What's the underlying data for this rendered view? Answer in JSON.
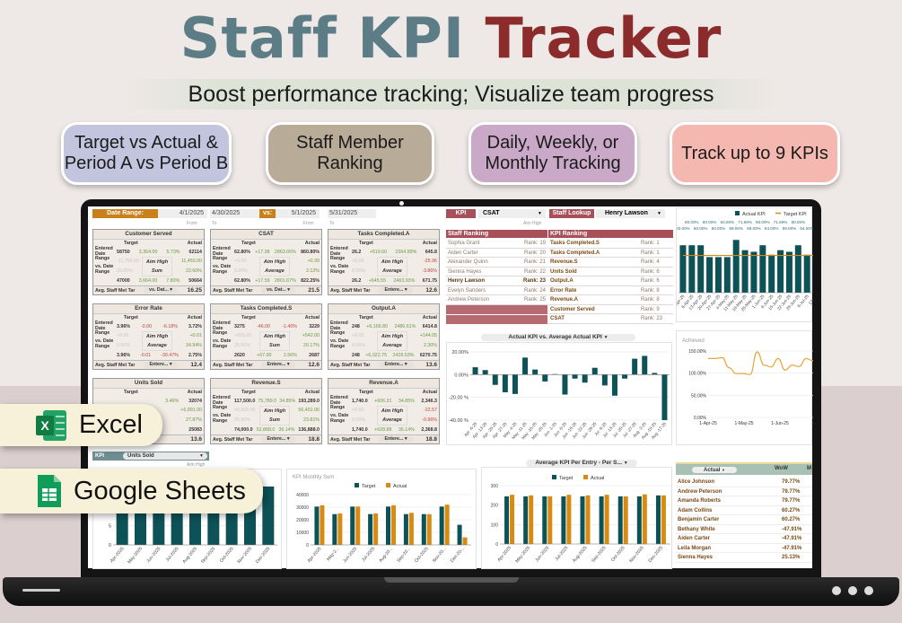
{
  "header": {
    "title_a": "Staff KPI",
    "title_b": "Tracker",
    "subtitle": "Boost performance tracking; Visualize team progress"
  },
  "badges": [
    {
      "l1": "Target vs Actual &",
      "l2": "Period A vs Period B",
      "color": "#c3c5df"
    },
    {
      "l1": "Staff Member",
      "l2": "Ranking",
      "color": "#b8ab98"
    },
    {
      "l1": "Daily, Weekly, or",
      "l2": "Monthly Tracking",
      "color": "#caa9c8"
    },
    {
      "l1": "Track up to 9 KPIs",
      "l2": "",
      "color": "#f5b8b1"
    }
  ],
  "platforms": {
    "excel": "Excel",
    "sheets": "Google Sheets"
  },
  "date_bar": {
    "label": "Date Range:",
    "from_a": "4/1/2025",
    "to_a": "4/30/2025",
    "vs": "vs:",
    "from_b": "5/1/2025",
    "to_b": "5/31/2025",
    "from_cap": "From",
    "to_cap": "To"
  },
  "kpi_cards": [
    {
      "title": "Customer Served",
      "target_h": "Target",
      "actual_h": "Actual",
      "row_a": [
        "58750",
        "3,364.00",
        "5.73%",
        "62114"
      ],
      "row_b": [
        "-11,750.00",
        "Aim High",
        "11,450.00"
      ],
      "row_c": [
        "25.00%",
        "Sum",
        "22.60%"
      ],
      "row_d": [
        "47000",
        "3,664.00",
        "7.80%",
        "50664"
      ],
      "footer": "Avg. Staff Met Tar",
      "dropdown": "vs. Dat...",
      "value": "16.25"
    },
    {
      "title": "CSAT",
      "target_h": "Target",
      "actual_h": "Actual",
      "row_a": [
        "62.80%",
        "+17.98",
        "2863.06%",
        "860.80%"
      ],
      "row_b": [
        "+0.00",
        "Aim High",
        "+0.39"
      ],
      "row_c": [
        "0.00%",
        "Average",
        "2.12%"
      ],
      "row_d": [
        "62.80%",
        "+17.59",
        "2801.67%",
        "822.25%"
      ],
      "footer": "Avg. Staff Met Tar",
      "dropdown": "vs. Dat...",
      "value": "21.5"
    },
    {
      "title": "Tasks Completed.A",
      "target_h": "Target",
      "actual_h": "Actual",
      "row_a": [
        "26.2",
        "+619.60",
        "2364.89%",
        "645.8"
      ],
      "row_b": [
        "+0.00",
        "Aim High",
        "-25.96"
      ],
      "row_c": [
        "0.00%",
        "Average",
        "-3.86%"
      ],
      "row_d": [
        "26.2",
        "+645.55",
        "2463.93%",
        "671.75"
      ],
      "footer": "Avg. Staff Met Tar",
      "dropdown": "Entere...",
      "value": "12.6"
    },
    {
      "title": "Error Rate",
      "target_h": "Target",
      "actual_h": "Actual",
      "row_a": [
        "3.96%",
        "-0.00",
        "-6.18%",
        "3.72%"
      ],
      "row_b": [
        "+0.00",
        "Aim High",
        "+0.01"
      ],
      "row_c": [
        "0.00%",
        "Average",
        "34.94%"
      ],
      "row_d": [
        "3.96%",
        "-0.01",
        "-30.47%",
        "2.75%"
      ],
      "footer": "Avg. Staff Met Tar",
      "dropdown": "Entere...",
      "value": "12.4"
    },
    {
      "title": "Tasks Completed.S",
      "target_h": "Target",
      "actual_h": "Actual",
      "row_a": [
        "3275",
        "-46.00",
        "-1.40%",
        "3229"
      ],
      "row_b": [
        "+655.00",
        "Aim High",
        "+542.00"
      ],
      "row_c": [
        "25.00%",
        "Sum",
        "20.17%"
      ],
      "row_d": [
        "2620",
        "+67.00",
        "2.56%",
        "2687"
      ],
      "footer": "Avg. Staff Met Tar",
      "dropdown": "Entere...",
      "value": "12.6"
    },
    {
      "title": "Output.A",
      "target_h": "Target",
      "actual_h": "Actual",
      "row_a": [
        "248",
        "+6,166.80",
        "2486.61%",
        "6414.8"
      ],
      "row_b": [
        "+0.00",
        "Aim High",
        "+144.05"
      ],
      "row_c": [
        "0.00%",
        "Average",
        "2.30%"
      ],
      "row_d": [
        "248",
        "+6,022.75",
        "2428.53%",
        "6270.75"
      ],
      "footer": "Avg. Staff Met Tar",
      "dropdown": "Entere...",
      "value": "13.6"
    },
    {
      "title": "Units Sold",
      "target_h": "Target",
      "actual_h": "Actual",
      "row_a": [
        "",
        "",
        "3.46%",
        "32074"
      ],
      "row_b": [
        "",
        "",
        "+6,991.00"
      ],
      "row_c": [
        "",
        "",
        "27.87%"
      ],
      "row_d": [
        "",
        "",
        "",
        "25083"
      ],
      "footer": "",
      "dropdown": "",
      "value": "13.6"
    },
    {
      "title": "Revenue.S",
      "target_h": "Target",
      "actual_h": "Actual",
      "row_a": [
        "117,500.0",
        "75,789.0",
        "34.85%",
        "193,289.0"
      ],
      "row_b": [
        "43,500.00",
        "Aim High",
        "56,401.00"
      ],
      "row_c": [
        "25.00%",
        "Sum",
        "23.81%"
      ],
      "row_d": [
        "74,000.0",
        "52,888.0",
        "36.14%",
        "136,888.0"
      ],
      "footer": "Avg. Staff Met Tar",
      "dropdown": "Entere...",
      "value": "18.8"
    },
    {
      "title": "Revenue.A",
      "target_h": "Target",
      "actual_h": "Actual",
      "row_a": [
        "1,740.0",
        "+606.31",
        "34.85%",
        "2,346.3"
      ],
      "row_b": [
        "+0.00",
        "Aim High",
        "-22.57"
      ],
      "row_c": [
        "0.00%",
        "Average",
        "-0.96%"
      ],
      "row_d": [
        "1,740.0",
        "+628.88",
        "36.14%",
        "2,368.8"
      ],
      "footer": "Avg. Staff Met Tar",
      "dropdown": "Entere...",
      "value": "18.8"
    }
  ],
  "lookup": {
    "kpi_label": "KPI",
    "kpi_value": "CSAT",
    "staff_label": "Staff Lookup",
    "staff_value": "Henry Lawson",
    "aim": "Aim High"
  },
  "staff_ranking": {
    "title": "Staff Ranking",
    "rows": [
      {
        "name": "Sophia Grant",
        "rank": "Rank: 19"
      },
      {
        "name": "Aiden Carter",
        "rank": "Rank: 20"
      },
      {
        "name": "Alexander Quinn",
        "rank": "Rank: 21"
      },
      {
        "name": "Sienna Hayes",
        "rank": "Rank: 22"
      },
      {
        "name": "Henry Lawson",
        "rank": "Rank: 23",
        "highlight": true
      },
      {
        "name": "Evelyn Sanders",
        "rank": "Rank: 24"
      },
      {
        "name": "Andrew Peterson",
        "rank": "Rank: 25"
      }
    ]
  },
  "kpi_ranking": {
    "title": "KPI Ranking",
    "rows": [
      {
        "name": "Tasks Completed.S",
        "rank": "Rank: 1"
      },
      {
        "name": "Tasks Completed.A",
        "rank": "Rank: 1"
      },
      {
        "name": "Revenue.S",
        "rank": "Rank: 4"
      },
      {
        "name": "Units Sold",
        "rank": "Rank: 6"
      },
      {
        "name": "Output.A",
        "rank": "Rank: 6"
      },
      {
        "name": "Error Rate",
        "rank": "Rank: 8"
      },
      {
        "name": "Revenue.A",
        "rank": "Rank: 8"
      },
      {
        "name": "Customer Served",
        "rank": "Rank: 9"
      },
      {
        "name": "CSAT",
        "rank": "Rank: 23"
      }
    ]
  },
  "bottom_kpi": {
    "label": "KPI",
    "value": "Units Sold",
    "aim": "Aim High"
  },
  "wow_table": {
    "dropdown": "Actual",
    "col1": "WoW",
    "col2": "M",
    "rows": [
      {
        "name": "Alice Johnson",
        "wow": "79.77%"
      },
      {
        "name": "Andrew Peterson",
        "wow": "79.77%"
      },
      {
        "name": "Amanda Roberts",
        "wow": "79.77%"
      },
      {
        "name": "Adam Collins",
        "wow": "60.27%"
      },
      {
        "name": "Benjamin Carter",
        "wow": "60.27%"
      },
      {
        "name": "Bethany White",
        "wow": "-47.91%"
      },
      {
        "name": "Aiden Carter",
        "wow": "-47.91%"
      },
      {
        "name": "Leila Morgan",
        "wow": "-47.91%"
      },
      {
        "name": "Sienna Hayes",
        "wow": "25.13%"
      }
    ]
  },
  "colors": {
    "teal": "#0c5257",
    "orange": "#d88b10",
    "line": "#e8a63a",
    "header_red": "#a8505a"
  },
  "chart_data": [
    {
      "id": "weekly",
      "type": "bar",
      "title": "",
      "categories": [
        "Apr-25",
        "6-Apr-25",
        "13-Apr-25",
        "20-Apr-25",
        "27-Apr-25",
        "4-May-25",
        "11-May-25",
        "18-May-25",
        "25-May-25",
        "1-Jun-25",
        "8-Jun-25",
        "15-Jun-25",
        "22-Jun-25",
        "29-Jun-25",
        "6-Jul-25",
        "13-J..."
      ],
      "series": [
        {
          "name": "Actual KPI",
          "values": [
            80,
            80,
            80,
            60,
            60,
            60,
            89,
            71.69,
            69,
            80,
            64,
            71.69,
            69,
            80,
            64,
            62
          ]
        },
        {
          "name": "Target KPI",
          "type": "line",
          "values": [
            62.8,
            62.8,
            62.8,
            62.8,
            62.8,
            62.8,
            62.8,
            62.8,
            62.8,
            62.8,
            62.8,
            62.8,
            62.8,
            62.8,
            62.8,
            62.8
          ]
        }
      ],
      "data_labels": [
        "80.00%",
        "80.00%",
        "80.00%",
        "60.00%",
        "60.00%",
        "60.00%",
        "89.00%",
        "71.69%",
        "69.00%",
        "80.00%",
        "64.00%",
        "71.69%",
        "69.00%",
        "80.00%",
        "64.00%",
        ""
      ],
      "ylim": [
        0,
        100
      ],
      "legend": "top-right"
    },
    {
      "id": "achieved",
      "type": "line",
      "title": "Achieved",
      "x_ticks": [
        "1-Apr-25",
        "1-May-25",
        "1-Jun-25",
        "1-Ju"
      ],
      "y_ticks": [
        "150.00%",
        "100.00%",
        "50.00%",
        "0.00%"
      ],
      "values": [
        133,
        133,
        135,
        112,
        99,
        99,
        97,
        148,
        118,
        114,
        133,
        107,
        118,
        115,
        133,
        128
      ],
      "ylim": [
        0,
        150
      ]
    },
    {
      "id": "vsavg",
      "type": "bar",
      "title": "Actual KPI vs. Average Actual KPI",
      "categories": [
        "Apr -6-25",
        "Apr -13-25",
        "Apr -20-25",
        "Apr -27-25",
        "May -4-25",
        "May -11-25",
        "May -18-25",
        "May -25-25",
        "Jun -1-25",
        "Jun -8-25",
        "Jun -15-25",
        "Jun -22-25",
        "Jun -29-25",
        "Jul -6-25",
        "Jul -13-25",
        "Jul -20-25",
        "Jul -27-25",
        "Aug -3-25",
        "Aug -10-25",
        "Aug -17-25"
      ],
      "values": [
        6.5,
        4,
        -9,
        -15.5,
        -17,
        15,
        4.5,
        -6,
        0.5,
        -17.5,
        -3.5,
        -7,
        6,
        -9.5,
        -18.5,
        -3.5,
        14,
        16.5,
        1.5,
        -40
      ],
      "y_ticks": [
        "20.00%",
        "0.00%",
        "-20.00 %",
        "-40.00 %"
      ],
      "ylim": [
        -40,
        20
      ]
    },
    {
      "id": "units",
      "type": "bar",
      "title": "",
      "categories": [
        "Apr-2025",
        "May-2025",
        "Jun-2025",
        "Jul-2025",
        "Aug-2025",
        "Sep-2025",
        "Oct-2025",
        "Nov-2025",
        "Dec-2025"
      ],
      "values": [
        15,
        15,
        15,
        15,
        15,
        15,
        15,
        15,
        15
      ],
      "y_ticks": [
        "0",
        "5"
      ],
      "ylim": [
        0,
        15
      ]
    },
    {
      "id": "monthly",
      "type": "bar",
      "title": "KPI Monthly Sum",
      "categories": [
        "Apr-2025",
        "May-2...",
        "Jun-2025",
        "Jul-2025",
        "Aug-20...",
        "Sep-20...",
        "Oct-2025",
        "Nov-20...",
        "Dec-20..."
      ],
      "series": [
        {
          "name": "Target",
          "values": [
            30500,
            24500,
            30500,
            24500,
            30500,
            24500,
            24500,
            30500,
            16000
          ]
        },
        {
          "name": "Actual",
          "values": [
            31500,
            25000,
            30500,
            25000,
            31500,
            25500,
            24500,
            32000,
            6000
          ]
        }
      ],
      "y_ticks": [
        "40000",
        "30000",
        "20000",
        "10000",
        "0"
      ],
      "ylim": [
        0,
        40000
      ],
      "legend": "top"
    },
    {
      "id": "perentry",
      "type": "bar",
      "title": "Average KPI Per Entry - Per S...",
      "categories": [
        "Apr-2025",
        "May-2025",
        "Jun-2025",
        "Jul-2025",
        "Aug-2025",
        "Sep-2025",
        "Oct-2025",
        "Nov-2025",
        "Dec-2025"
      ],
      "series": [
        {
          "name": "Target",
          "values": [
            245,
            245,
            245,
            245,
            245,
            245,
            245,
            245,
            250
          ]
        },
        {
          "name": "Actual",
          "values": [
            253,
            250,
            245,
            253,
            250,
            253,
            245,
            255,
            250
          ]
        }
      ],
      "y_ticks": [
        "300",
        "200",
        "100",
        "0"
      ],
      "ylim": [
        0,
        300
      ],
      "legend": "top"
    }
  ]
}
